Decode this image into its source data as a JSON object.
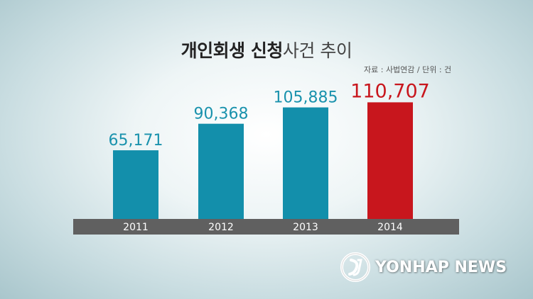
{
  "chart_data": {
    "type": "bar",
    "title_bold": "개인회생 신청",
    "title_light": "사건 추이",
    "source": "자료 : 사법연감 / 단위 : 건",
    "categories": [
      "2011",
      "2012",
      "2013",
      "2014"
    ],
    "values": [
      65171,
      90368,
      105885,
      110707
    ],
    "value_labels": [
      "65,171",
      "90,368",
      "105,885",
      "110,707"
    ],
    "ylim": [
      0,
      150000
    ],
    "grid": false,
    "colors": {
      "bar": "#138fab",
      "highlight_bar": "#c8161d",
      "value_label": "#1a92ad",
      "highlight_label": "#c8161d",
      "axis_band": "#606060",
      "axis_text": "#ffffff"
    },
    "highlight_index": 3
  },
  "watermark": {
    "text": "YONHAP NEWS",
    "icon": "yonhap-logo-icon"
  }
}
